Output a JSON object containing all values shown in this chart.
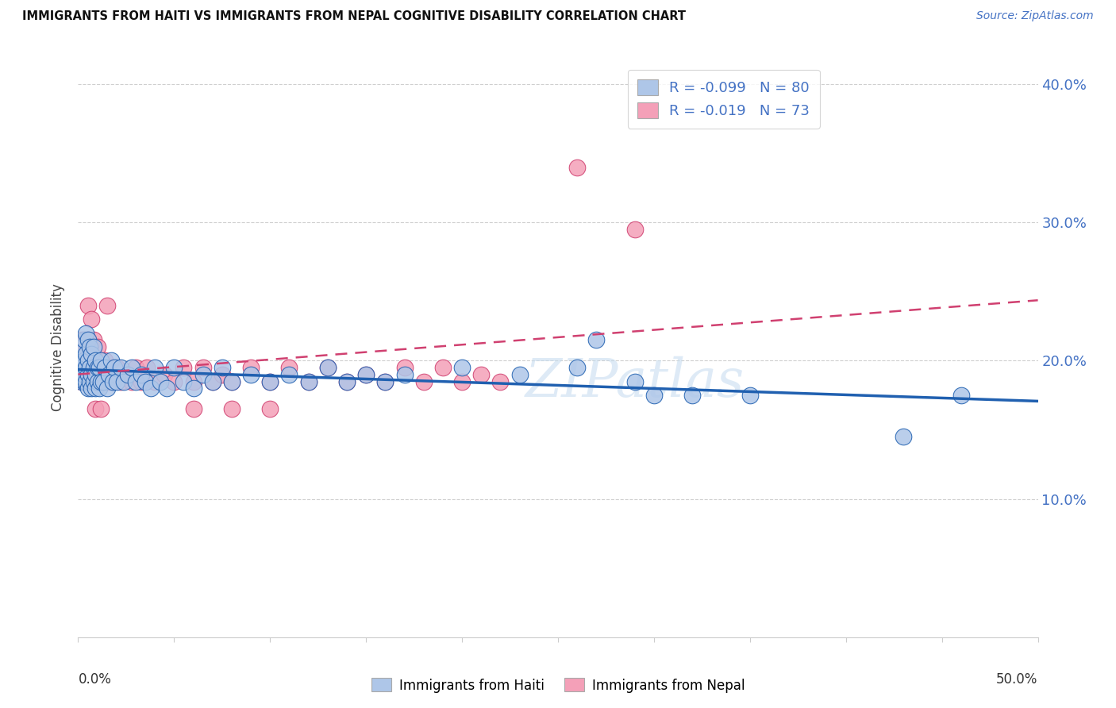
{
  "title": "IMMIGRANTS FROM HAITI VS IMMIGRANTS FROM NEPAL COGNITIVE DISABILITY CORRELATION CHART",
  "source": "Source: ZipAtlas.com",
  "ylabel": "Cognitive Disability",
  "watermark": "ZIPatlas",
  "legend_haiti": {
    "R": -0.099,
    "N": 80,
    "color": "#aec6e8",
    "line_color": "#2060b0"
  },
  "legend_nepal": {
    "R": -0.019,
    "N": 73,
    "color": "#f4a0b8",
    "line_color": "#d04070"
  },
  "xlim": [
    0.0,
    0.5
  ],
  "ylim": [
    0.0,
    0.42
  ],
  "right_yticks": [
    0.1,
    0.2,
    0.3,
    0.4
  ],
  "right_ytick_labels": [
    "10.0%",
    "20.0%",
    "30.0%",
    "40.0%"
  ],
  "haiti_x": [
    0.001,
    0.001,
    0.002,
    0.002,
    0.002,
    0.003,
    0.003,
    0.003,
    0.003,
    0.004,
    0.004,
    0.004,
    0.004,
    0.005,
    0.005,
    0.005,
    0.005,
    0.006,
    0.006,
    0.006,
    0.007,
    0.007,
    0.007,
    0.008,
    0.008,
    0.008,
    0.009,
    0.009,
    0.009,
    0.01,
    0.01,
    0.011,
    0.011,
    0.012,
    0.012,
    0.013,
    0.014,
    0.015,
    0.016,
    0.017,
    0.018,
    0.019,
    0.02,
    0.022,
    0.024,
    0.026,
    0.028,
    0.03,
    0.033,
    0.035,
    0.038,
    0.04,
    0.043,
    0.046,
    0.05,
    0.055,
    0.06,
    0.065,
    0.07,
    0.075,
    0.08,
    0.09,
    0.1,
    0.11,
    0.12,
    0.13,
    0.14,
    0.15,
    0.16,
    0.17,
    0.2,
    0.23,
    0.26,
    0.29,
    0.32,
    0.35,
    0.27,
    0.3,
    0.43,
    0.46
  ],
  "haiti_y": [
    0.195,
    0.2,
    0.185,
    0.195,
    0.21,
    0.185,
    0.19,
    0.2,
    0.215,
    0.185,
    0.195,
    0.205,
    0.22,
    0.18,
    0.19,
    0.2,
    0.215,
    0.185,
    0.195,
    0.21,
    0.18,
    0.19,
    0.205,
    0.185,
    0.195,
    0.21,
    0.18,
    0.19,
    0.2,
    0.185,
    0.195,
    0.18,
    0.195,
    0.185,
    0.2,
    0.185,
    0.195,
    0.18,
    0.19,
    0.2,
    0.185,
    0.195,
    0.185,
    0.195,
    0.185,
    0.19,
    0.195,
    0.185,
    0.19,
    0.185,
    0.18,
    0.195,
    0.185,
    0.18,
    0.195,
    0.185,
    0.18,
    0.19,
    0.185,
    0.195,
    0.185,
    0.19,
    0.185,
    0.19,
    0.185,
    0.195,
    0.185,
    0.19,
    0.185,
    0.19,
    0.195,
    0.19,
    0.195,
    0.185,
    0.175,
    0.175,
    0.215,
    0.175,
    0.145,
    0.175
  ],
  "nepal_x": [
    0.001,
    0.001,
    0.002,
    0.002,
    0.002,
    0.003,
    0.003,
    0.003,
    0.004,
    0.004,
    0.004,
    0.005,
    0.005,
    0.005,
    0.006,
    0.006,
    0.006,
    0.007,
    0.007,
    0.008,
    0.008,
    0.008,
    0.009,
    0.009,
    0.01,
    0.01,
    0.011,
    0.012,
    0.013,
    0.014,
    0.015,
    0.016,
    0.018,
    0.02,
    0.022,
    0.025,
    0.028,
    0.03,
    0.033,
    0.036,
    0.04,
    0.045,
    0.05,
    0.055,
    0.06,
    0.065,
    0.07,
    0.075,
    0.08,
    0.09,
    0.1,
    0.11,
    0.12,
    0.13,
    0.14,
    0.15,
    0.16,
    0.17,
    0.18,
    0.19,
    0.2,
    0.21,
    0.22,
    0.005,
    0.007,
    0.009,
    0.012,
    0.015,
    0.06,
    0.08,
    0.1,
    0.26,
    0.29
  ],
  "nepal_y": [
    0.195,
    0.205,
    0.185,
    0.195,
    0.215,
    0.185,
    0.195,
    0.21,
    0.185,
    0.195,
    0.215,
    0.185,
    0.2,
    0.215,
    0.185,
    0.195,
    0.21,
    0.185,
    0.195,
    0.185,
    0.195,
    0.215,
    0.185,
    0.2,
    0.195,
    0.21,
    0.185,
    0.195,
    0.185,
    0.2,
    0.185,
    0.195,
    0.185,
    0.195,
    0.185,
    0.19,
    0.185,
    0.195,
    0.185,
    0.195,
    0.185,
    0.19,
    0.185,
    0.195,
    0.185,
    0.195,
    0.185,
    0.19,
    0.185,
    0.195,
    0.185,
    0.195,
    0.185,
    0.195,
    0.185,
    0.19,
    0.185,
    0.195,
    0.185,
    0.195,
    0.185,
    0.19,
    0.185,
    0.24,
    0.23,
    0.165,
    0.165,
    0.24,
    0.165,
    0.165,
    0.165,
    0.34,
    0.295
  ]
}
